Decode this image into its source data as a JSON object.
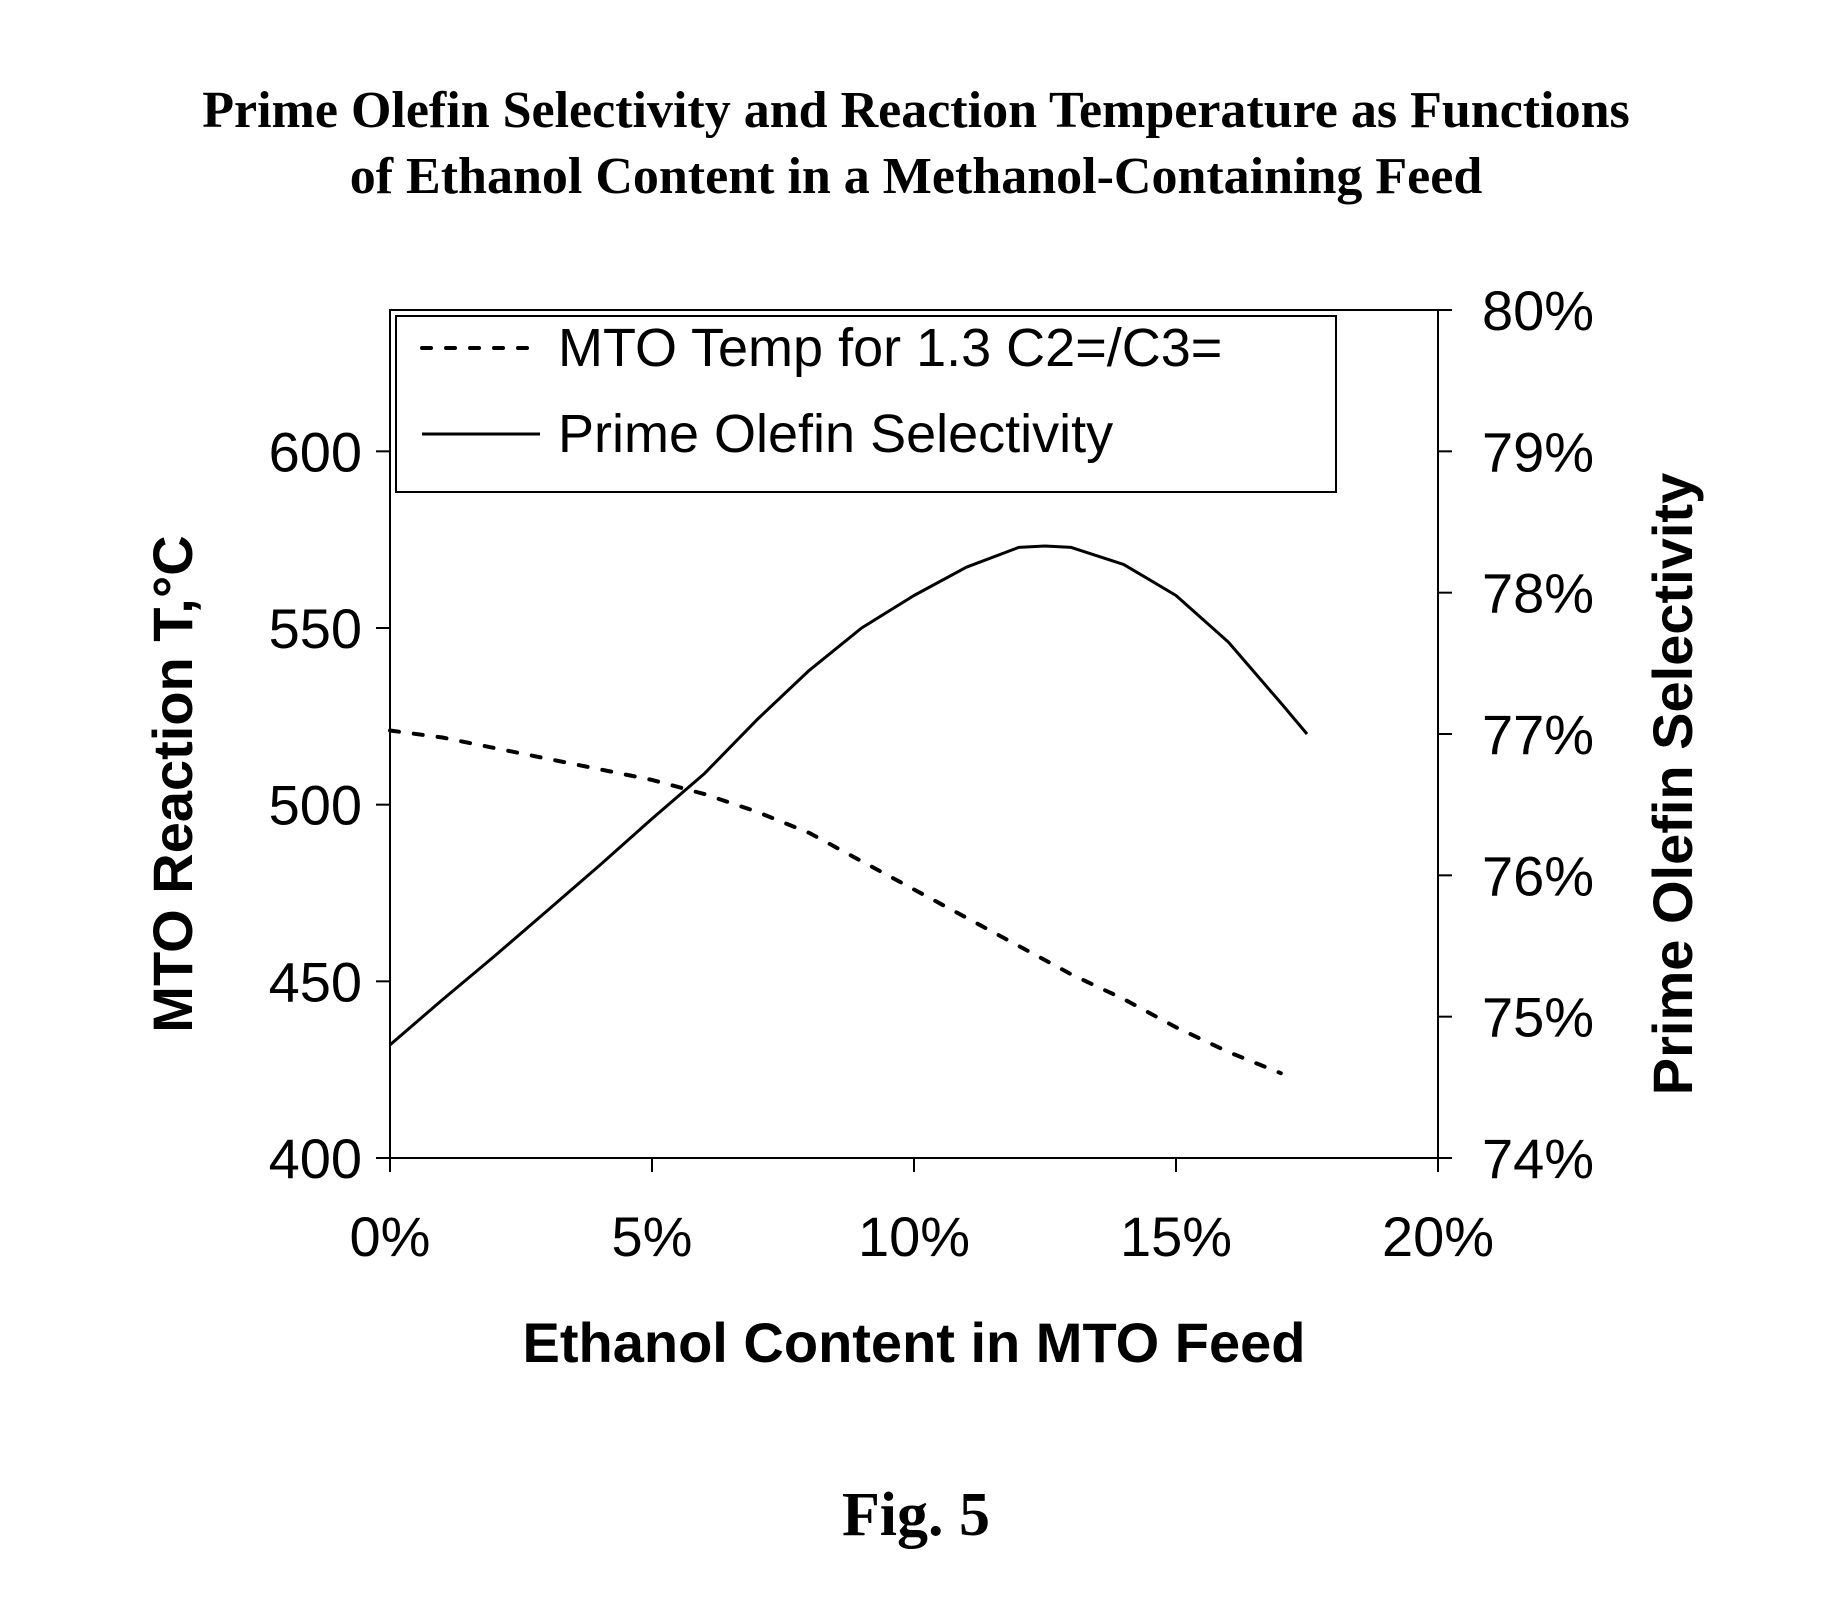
{
  "figure": {
    "title_line1": "Prime Olefin Selectivity and Reaction Temperature as Functions",
    "title_line2": "of Ethanol Content in a Methanol-Containing Feed",
    "caption": "Fig. 5"
  },
  "chart_data": {
    "type": "line",
    "title": "Prime Olefin Selectivity and Reaction Temperature as Functions of Ethanol Content in a Methanol-Containing Feed",
    "xlabel": "Ethanol Content in MTO Feed",
    "ylabel_left": "MTO Reaction T,°C",
    "ylabel_right": "Prime Olefin Selectivity",
    "xlim": [
      0,
      20
    ],
    "x_ticks": [
      0,
      5,
      10,
      15,
      20
    ],
    "x_tick_labels": [
      "0%",
      "5%",
      "10%",
      "15%",
      "20%"
    ],
    "ylim_left": [
      400,
      640
    ],
    "y_left_ticks": [
      400,
      450,
      500,
      550,
      600
    ],
    "y_left_tick_labels": [
      "400",
      "450",
      "500",
      "550",
      "600"
    ],
    "ylim_right": [
      74,
      80
    ],
    "y_right_ticks": [
      74,
      75,
      76,
      77,
      78,
      79,
      80
    ],
    "y_right_tick_labels": [
      "74%",
      "75%",
      "76%",
      "77%",
      "78%",
      "79%",
      "80%"
    ],
    "grid": false,
    "legend_position": "top-left",
    "series": [
      {
        "name": "MTO Temp for 1.3 C2=/C3=",
        "axis": "left",
        "style": "dashed",
        "color": "#000000",
        "x": [
          0,
          1,
          2,
          3,
          4,
          5,
          6,
          7,
          8,
          9,
          10,
          11,
          12,
          13,
          14,
          15,
          16,
          17
        ],
        "y": [
          521,
          519,
          516,
          513,
          510,
          507,
          503,
          498,
          492,
          484,
          476,
          468,
          460,
          452,
          445,
          437,
          430,
          424
        ]
      },
      {
        "name": "Prime Olefin Selectivity",
        "axis": "right",
        "style": "solid",
        "color": "#000000",
        "x": [
          0,
          1,
          2,
          3,
          4,
          5,
          6,
          7,
          8,
          9,
          10,
          11,
          12,
          12.5,
          13,
          14,
          15,
          16,
          17,
          17.5
        ],
        "y": [
          74.8,
          75.12,
          75.43,
          75.75,
          76.07,
          76.4,
          76.72,
          77.1,
          77.45,
          77.75,
          77.98,
          78.18,
          78.32,
          78.33,
          78.32,
          78.2,
          77.98,
          77.65,
          77.22,
          77.0
        ]
      }
    ]
  }
}
